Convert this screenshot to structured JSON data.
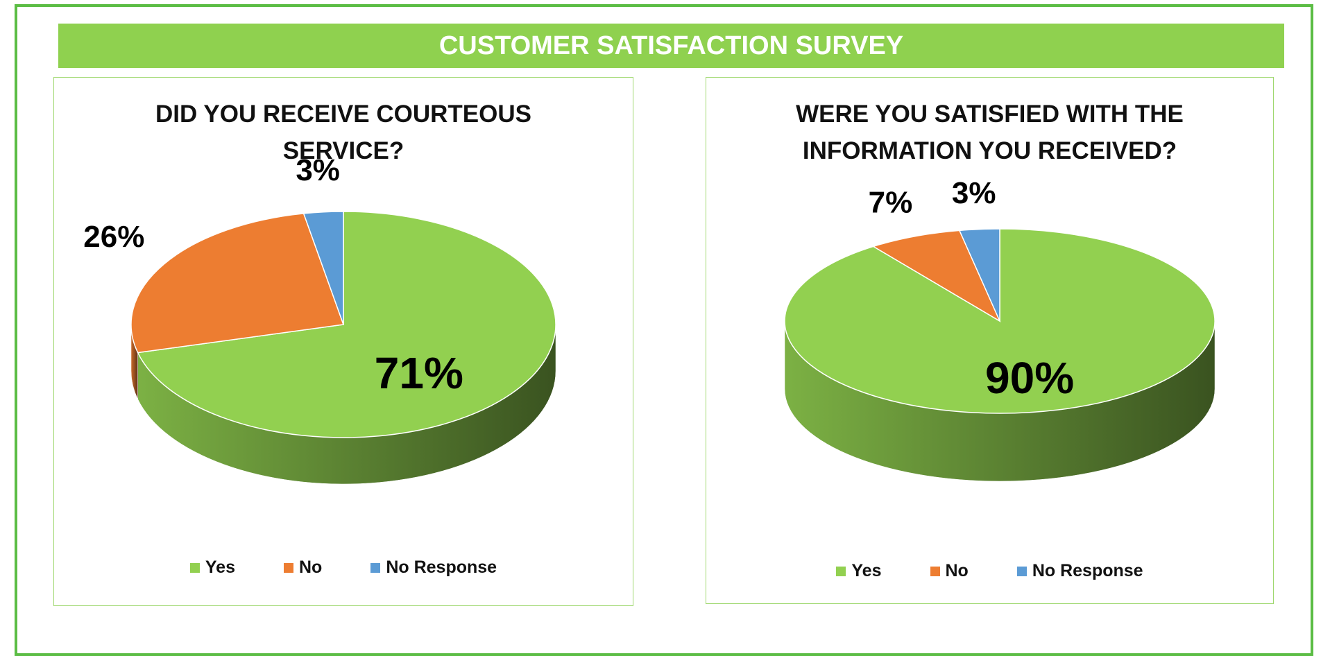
{
  "title": "CUSTOMER SATISFACTION SURVEY",
  "chart_data": [
    {
      "type": "pie",
      "title": "DID YOU RECEIVE COURTEOUS SERVICE?",
      "categories": [
        "Yes",
        "No",
        "No Response"
      ],
      "values": [
        71,
        26,
        3
      ],
      "value_labels": [
        "71%",
        "26%",
        "3%"
      ],
      "colors": [
        "#92d050",
        "#ed7d31",
        "#5b9bd5"
      ]
    },
    {
      "type": "pie",
      "title": "WERE YOU SATISFIED WITH THE INFORMATION YOU RECEIVED?",
      "categories": [
        "Yes",
        "No",
        "No Response"
      ],
      "values": [
        90,
        7,
        3
      ],
      "value_labels": [
        "90%",
        "7%",
        "3%"
      ],
      "colors": [
        "#92d050",
        "#ed7d31",
        "#5b9bd5"
      ]
    }
  ]
}
